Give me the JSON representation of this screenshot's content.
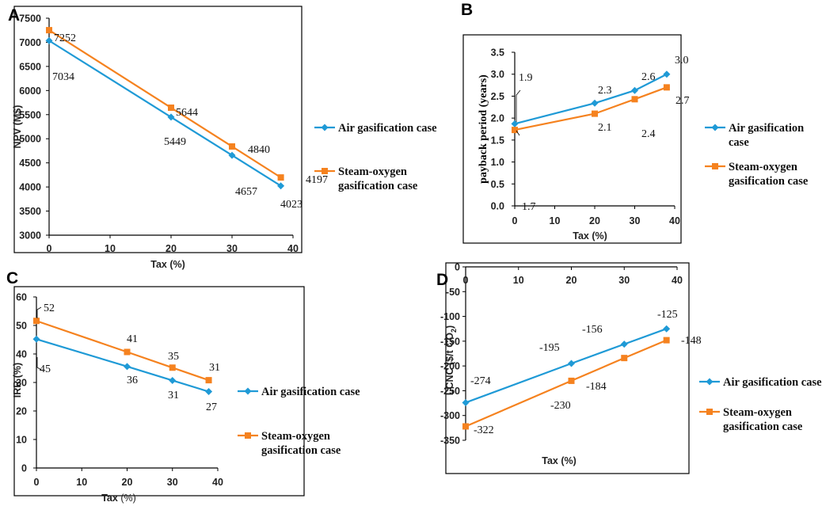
{
  "colors": {
    "air": "#1f9ad6",
    "steam": "#f5821f"
  },
  "chart_data": [
    {
      "panel": "A",
      "type": "line",
      "xlabel": "Tax (%)",
      "ylabel": "NPV (M$)",
      "xlim": [
        0,
        40
      ],
      "ylim": [
        3000,
        7500
      ],
      "xticks": [
        0,
        10,
        20,
        30,
        40
      ],
      "yticks": [
        3000,
        3500,
        4000,
        4500,
        5000,
        5500,
        6000,
        6500,
        7000,
        7500
      ],
      "series": [
        {
          "name": "Air gasification case",
          "key": "air",
          "x": [
            0,
            20,
            30,
            38
          ],
          "y": [
            7034,
            5449,
            4657,
            4023
          ],
          "labels": [
            "7034",
            "5449",
            "4657",
            "4023"
          ]
        },
        {
          "name": "Steam-oxygen gasification case",
          "key": "steam",
          "x": [
            0,
            20,
            30,
            38
          ],
          "y": [
            7252,
            5644,
            4840,
            4197
          ],
          "labels": [
            "7252",
            "5644",
            "4840",
            "4197"
          ]
        }
      ],
      "legend": [
        "Air gasification case",
        "Steam-oxygen",
        "gasification case"
      ]
    },
    {
      "panel": "B",
      "type": "line",
      "xlabel": "Tax (%)",
      "ylabel": "payback period (years)",
      "xlim": [
        0,
        40
      ],
      "ylim": [
        0,
        3.5
      ],
      "xticks": [
        0,
        10,
        20,
        30,
        40
      ],
      "yticks": [
        "0.0",
        "0.5",
        "1.0",
        "1.5",
        "2.0",
        "2.5",
        "3.0",
        "3.5"
      ],
      "series": [
        {
          "name": "Air gasification case",
          "key": "air",
          "x": [
            0,
            20,
            30,
            38
          ],
          "y": [
            1.87,
            2.34,
            2.63,
            3.0
          ],
          "labels": [
            "1.9",
            "2.3",
            "2.6",
            "3.0"
          ]
        },
        {
          "name": "Steam-oxygen gasification case",
          "key": "steam",
          "x": [
            0,
            20,
            30,
            38
          ],
          "y": [
            1.73,
            2.1,
            2.43,
            2.7
          ],
          "labels": [
            "1.7",
            "2.1",
            "2.4",
            "2.7"
          ]
        }
      ],
      "legend": [
        "Air gasification",
        "case",
        "Steam-oxygen",
        "gasification case"
      ]
    },
    {
      "panel": "C",
      "type": "line",
      "xlabel": "Tax",
      "xlabel_unit": "(%)",
      "ylabel": "IRR (%)",
      "xlim": [
        0,
        40
      ],
      "ylim": [
        0,
        60
      ],
      "xticks": [
        0,
        10,
        20,
        30,
        40
      ],
      "yticks": [
        0,
        10,
        20,
        30,
        40,
        50,
        60
      ],
      "series": [
        {
          "name": "Air gasification case",
          "key": "air",
          "x": [
            0,
            20,
            30,
            38
          ],
          "y": [
            45.2,
            35.6,
            30.7,
            26.8
          ],
          "labels": [
            "45",
            "36",
            "31",
            "27"
          ]
        },
        {
          "name": "Steam-oxygen gasification case",
          "key": "steam",
          "x": [
            0,
            20,
            30,
            38
          ],
          "y": [
            51.6,
            40.7,
            35.2,
            30.8
          ],
          "labels": [
            "52",
            "41",
            "35",
            "31"
          ]
        }
      ],
      "legend": [
        "Air gasification case",
        "Steam-oxygen",
        "gasification case"
      ]
    },
    {
      "panel": "D",
      "type": "line",
      "xlabel": "Tax (%)",
      "ylabel": "LCNC ($/t  CO",
      "ylabel_sub": "2",
      "ylabel_close": ")",
      "xlim": [
        0,
        40
      ],
      "ylim": [
        -350,
        0
      ],
      "xticks": [
        0,
        10,
        20,
        30,
        40
      ],
      "yticks": [
        0,
        -50,
        -100,
        -150,
        -200,
        -250,
        -300,
        -350
      ],
      "series": [
        {
          "name": "Air gasification case",
          "key": "air",
          "x": [
            0,
            20,
            30,
            38
          ],
          "y": [
            -274,
            -195,
            -156,
            -125
          ],
          "labels": [
            "-274",
            "-195",
            "-156",
            "-125"
          ]
        },
        {
          "name": "Steam-oxygen gasification case",
          "key": "steam",
          "x": [
            0,
            20,
            30,
            38
          ],
          "y": [
            -322,
            -230,
            -184,
            -148
          ],
          "labels": [
            "-322",
            "-230",
            "-184",
            "-148"
          ]
        }
      ],
      "legend": [
        "Air gasification case",
        "Steam-oxygen",
        "gasification case"
      ]
    }
  ]
}
